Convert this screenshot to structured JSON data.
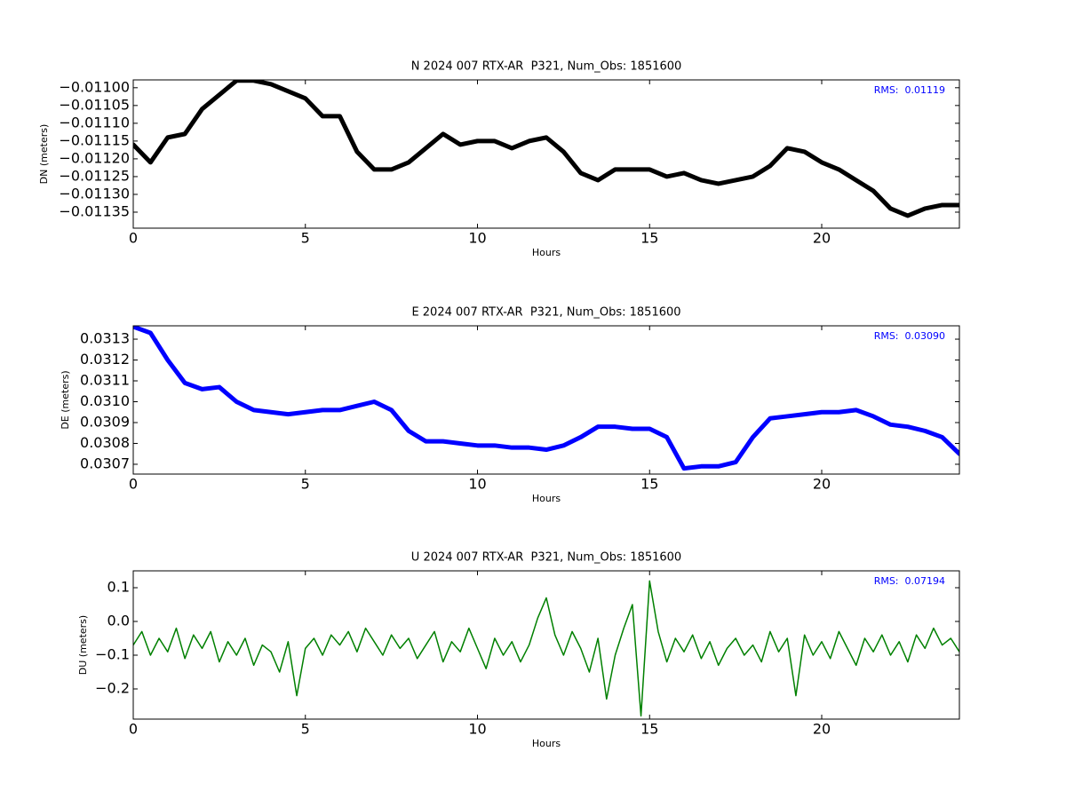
{
  "chart_data": [
    {
      "type": "line",
      "title": "N 2024 007 RTX-AR  P321, Num_Obs: 1851600",
      "xlabel": "Hours",
      "ylabel": "DN (meters)",
      "annotation": "RMS:  0.01119",
      "color": "#000000",
      "line_width": 5,
      "xlim": [
        0,
        24
      ],
      "xticks": [
        0,
        5,
        10,
        15,
        20
      ],
      "ylim": [
        -0.011395,
        -0.010978
      ],
      "yticks": [
        {
          "value": -0.011,
          "label": "−0.01100"
        },
        {
          "value": -0.01105,
          "label": "−0.01105"
        },
        {
          "value": -0.0111,
          "label": "−0.01110"
        },
        {
          "value": -0.01115,
          "label": "−0.01115"
        },
        {
          "value": -0.0112,
          "label": "−0.01120"
        },
        {
          "value": -0.01125,
          "label": "−0.01125"
        },
        {
          "value": -0.0113,
          "label": "−0.01130"
        },
        {
          "value": -0.01135,
          "label": "−0.01135"
        }
      ],
      "x": [
        0,
        0.5,
        1,
        1.5,
        2,
        2.5,
        3,
        3.5,
        4,
        4.5,
        5,
        5.5,
        6,
        6.5,
        7,
        7.5,
        8,
        8.5,
        9,
        9.5,
        10,
        10.5,
        11,
        11.5,
        12,
        12.5,
        13,
        13.5,
        14,
        14.5,
        15,
        15.5,
        16,
        16.5,
        17,
        17.5,
        18,
        18.5,
        19,
        19.5,
        20,
        20.5,
        21,
        21.5,
        22,
        22.5,
        23,
        23.5,
        24
      ],
      "values": [
        -0.01116,
        -0.01121,
        -0.01114,
        -0.01113,
        -0.01106,
        -0.01102,
        -0.01098,
        -0.01098,
        -0.01099,
        -0.01101,
        -0.01103,
        -0.01108,
        -0.01108,
        -0.01118,
        -0.01123,
        -0.01123,
        -0.01121,
        -0.01117,
        -0.01113,
        -0.01116,
        -0.01115,
        -0.01115,
        -0.01117,
        -0.01115,
        -0.01114,
        -0.01118,
        -0.01124,
        -0.01126,
        -0.01123,
        -0.01123,
        -0.01123,
        -0.01125,
        -0.01124,
        -0.01126,
        -0.01127,
        -0.01126,
        -0.01125,
        -0.01122,
        -0.01117,
        -0.01118,
        -0.01121,
        -0.01123,
        -0.01126,
        -0.01129,
        -0.01134,
        -0.01136,
        -0.01134,
        -0.01133,
        -0.01133
      ]
    },
    {
      "type": "line",
      "title": "E 2024 007 RTX-AR  P321, Num_Obs: 1851600",
      "xlabel": "Hours",
      "ylabel": "DE (meters)",
      "annotation": "RMS:  0.03090",
      "color": "#0000ff",
      "line_width": 5,
      "xlim": [
        0,
        24
      ],
      "xticks": [
        0,
        5,
        10,
        15,
        20
      ],
      "ylim": [
        0.030653,
        0.031364
      ],
      "yticks": [
        0.0313,
        0.0312,
        0.0311,
        {
          "value": 0.031,
          "label": "0.0310"
        },
        0.0309,
        0.0308,
        0.0307
      ],
      "x": [
        0,
        0.5,
        1,
        1.5,
        2,
        2.5,
        3,
        3.5,
        4,
        4.5,
        5,
        5.5,
        6,
        6.5,
        7,
        7.5,
        8,
        8.5,
        9,
        9.5,
        10,
        10.5,
        11,
        11.5,
        12,
        12.5,
        13,
        13.5,
        14,
        14.5,
        15,
        15.5,
        16,
        16.5,
        17,
        17.5,
        18,
        18.5,
        19,
        19.5,
        20,
        20.5,
        21,
        21.5,
        22,
        22.5,
        23,
        23.5,
        24
      ],
      "values": [
        0.03136,
        0.03133,
        0.0312,
        0.03109,
        0.03106,
        0.03107,
        0.031,
        0.03096,
        0.03095,
        0.03094,
        0.03095,
        0.03096,
        0.03096,
        0.03098,
        0.031,
        0.03096,
        0.03086,
        0.03081,
        0.03081,
        0.0308,
        0.03079,
        0.03079,
        0.03078,
        0.03078,
        0.03077,
        0.03079,
        0.03083,
        0.03088,
        0.03088,
        0.03087,
        0.03087,
        0.03083,
        0.03068,
        0.03069,
        0.03069,
        0.03071,
        0.03083,
        0.03092,
        0.03093,
        0.03094,
        0.03095,
        0.03095,
        0.03096,
        0.03093,
        0.03089,
        0.03088,
        0.03086,
        0.03083,
        0.03075
      ]
    },
    {
      "type": "line",
      "title": "U 2024 007 RTX-AR  P321, Num_Obs: 1851600",
      "xlabel": "Hours",
      "ylabel": "DU (meters)",
      "annotation": "RMS:  0.07194",
      "color": "#008000",
      "line_width": 1.5,
      "xlim": [
        0,
        24
      ],
      "xticks": [
        0,
        5,
        10,
        15,
        20
      ],
      "ylim": [
        -0.2895,
        0.15
      ],
      "yticks": [
        0.1,
        {
          "value": 0,
          "label": "0.0"
        },
        {
          "value": -0.1,
          "label": "−0.1"
        },
        {
          "value": -0.2,
          "label": "−0.2"
        }
      ],
      "x": [
        0,
        0.25,
        0.5,
        0.75,
        1,
        1.25,
        1.5,
        1.75,
        2,
        2.25,
        2.5,
        2.75,
        3,
        3.25,
        3.5,
        3.75,
        4,
        4.25,
        4.5,
        4.75,
        5,
        5.25,
        5.5,
        5.75,
        6,
        6.25,
        6.5,
        6.75,
        7,
        7.25,
        7.5,
        7.75,
        8,
        8.25,
        8.5,
        8.75,
        9,
        9.25,
        9.5,
        9.75,
        10,
        10.25,
        10.5,
        10.75,
        11,
        11.25,
        11.5,
        11.75,
        12,
        12.25,
        12.5,
        12.75,
        13,
        13.25,
        13.5,
        13.75,
        14,
        14.25,
        14.5,
        14.75,
        15,
        15.25,
        15.5,
        15.75,
        16,
        16.25,
        16.5,
        16.75,
        17,
        17.25,
        17.5,
        17.75,
        18,
        18.25,
        18.5,
        18.75,
        19,
        19.25,
        19.5,
        19.75,
        20,
        20.25,
        20.5,
        20.75,
        21,
        21.25,
        21.5,
        21.75,
        22,
        22.25,
        22.5,
        22.75,
        23,
        23.25,
        23.5,
        23.75,
        24
      ],
      "values": [
        -0.07,
        -0.03,
        -0.1,
        -0.05,
        -0.09,
        -0.02,
        -0.11,
        -0.04,
        -0.08,
        -0.03,
        -0.12,
        -0.06,
        -0.1,
        -0.05,
        -0.13,
        -0.07,
        -0.09,
        -0.15,
        -0.06,
        -0.22,
        -0.08,
        -0.05,
        -0.1,
        -0.04,
        -0.07,
        -0.03,
        -0.09,
        -0.02,
        -0.06,
        -0.1,
        -0.04,
        -0.08,
        -0.05,
        -0.11,
        -0.07,
        -0.03,
        -0.12,
        -0.06,
        -0.09,
        -0.02,
        -0.08,
        -0.14,
        -0.05,
        -0.1,
        -0.06,
        -0.12,
        -0.07,
        0.01,
        0.07,
        -0.04,
        -0.1,
        -0.03,
        -0.08,
        -0.15,
        -0.05,
        -0.23,
        -0.1,
        -0.02,
        0.05,
        -0.28,
        0.12,
        -0.03,
        -0.12,
        -0.05,
        -0.09,
        -0.04,
        -0.11,
        -0.06,
        -0.13,
        -0.08,
        -0.05,
        -0.1,
        -0.07,
        -0.12,
        -0.03,
        -0.09,
        -0.05,
        -0.22,
        -0.04,
        -0.1,
        -0.06,
        -0.11,
        -0.03,
        -0.08,
        -0.13,
        -0.05,
        -0.09,
        -0.04,
        -0.1,
        -0.06,
        -0.12,
        -0.04,
        -0.08,
        -0.02,
        -0.07,
        -0.05,
        -0.09
      ]
    }
  ]
}
